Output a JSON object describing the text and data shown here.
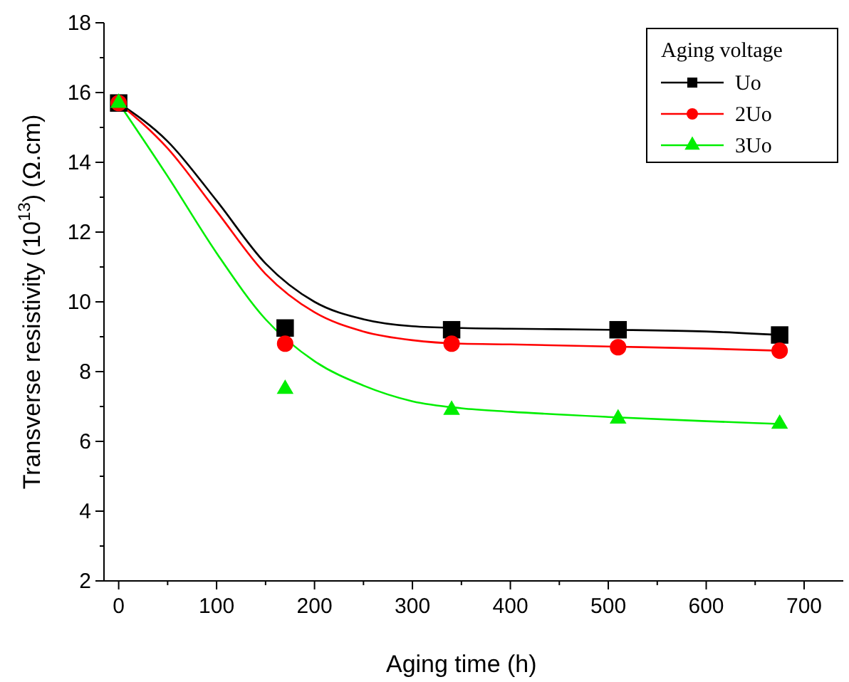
{
  "chart_data": {
    "type": "scatter",
    "xlabel": "Aging time (h)",
    "ylabel": "Transverse resistivity (10$^{13}$) (Ω.cm)",
    "legend_title": "Aging voltage",
    "legend": "top right",
    "xlim": [
      -15,
      740
    ],
    "ylim": [
      2,
      18
    ],
    "xticks": [
      0,
      {
        "value": 50,
        "label": null
      },
      100,
      {
        "value": 150,
        "label": null
      },
      200,
      {
        "value": 250,
        "label": null
      },
      300,
      {
        "value": 350,
        "label": null
      },
      400,
      {
        "value": 450,
        "label": null
      },
      500,
      {
        "value": 550,
        "label": null
      },
      600,
      {
        "value": 650,
        "label": null
      },
      700
    ],
    "yticks": [
      2,
      {
        "value": 3,
        "label": null
      },
      4,
      {
        "value": 5,
        "label": null
      },
      6,
      {
        "value": 7,
        "label": null
      },
      8,
      {
        "value": 9,
        "label": null
      },
      10,
      {
        "value": 11,
        "label": null
      },
      12,
      {
        "value": 13,
        "label": null
      },
      14,
      {
        "value": 15,
        "label": null
      },
      16,
      {
        "value": 17,
        "label": null
      },
      18
    ],
    "series": [
      {
        "name": "Uo",
        "color": "#000000",
        "marker": "square",
        "x": [
          0,
          170,
          340,
          510,
          675
        ],
        "values": [
          15.7,
          9.25,
          9.2,
          9.2,
          9.05
        ]
      },
      {
        "name": "2Uo",
        "color": "#ff0000",
        "marker": "circle",
        "x": [
          0,
          170,
          340,
          510,
          675
        ],
        "values": [
          15.7,
          8.8,
          8.8,
          8.7,
          8.6
        ]
      },
      {
        "name": "3Uo",
        "color": "#00ee00",
        "marker": "triangle",
        "x": [
          0,
          170,
          340,
          510,
          675
        ],
        "values": [
          15.7,
          7.5,
          6.9,
          6.65,
          6.5
        ]
      },
      {
        "type": "line",
        "color": "#000000",
        "x": [
          0,
          50,
          100,
          150,
          200,
          250,
          300,
          350,
          400,
          500,
          600,
          675
        ],
        "values": [
          15.7,
          14.6,
          12.9,
          11.1,
          10.0,
          9.5,
          9.3,
          9.25,
          9.23,
          9.2,
          9.15,
          9.05
        ]
      },
      {
        "type": "line",
        "color": "#ff0000",
        "x": [
          0,
          50,
          100,
          150,
          200,
          250,
          300,
          350,
          400,
          500,
          600,
          675
        ],
        "values": [
          15.7,
          14.4,
          12.6,
          10.8,
          9.7,
          9.15,
          8.9,
          8.8,
          8.78,
          8.72,
          8.66,
          8.6
        ]
      },
      {
        "type": "line",
        "color": "#00ee00",
        "x": [
          0,
          50,
          100,
          150,
          200,
          250,
          300,
          350,
          400,
          500,
          600,
          675
        ],
        "values": [
          15.7,
          13.6,
          11.4,
          9.5,
          8.3,
          7.6,
          7.15,
          6.95,
          6.85,
          6.7,
          6.58,
          6.5
        ]
      }
    ]
  }
}
